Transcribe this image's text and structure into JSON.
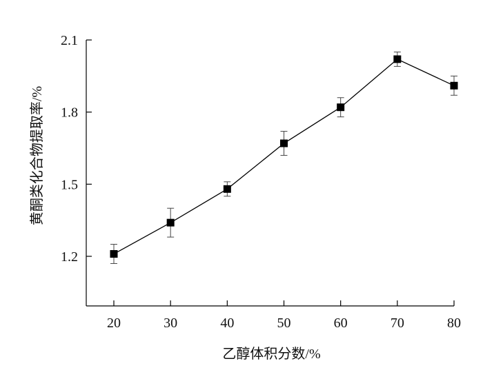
{
  "chart_data": {
    "type": "line",
    "title": "",
    "xlabel": "乙醇体积分数/%",
    "ylabel": "黄酮类化合物提取率/%",
    "x": [
      20,
      30,
      40,
      50,
      60,
      70,
      80
    ],
    "series": [
      {
        "values": [
          1.21,
          1.34,
          1.48,
          1.67,
          1.82,
          2.02,
          1.91
        ],
        "error": [
          0.04,
          0.06,
          0.03,
          0.05,
          0.04,
          0.03,
          0.04
        ]
      }
    ],
    "x_ticks": [
      "20",
      "30",
      "40",
      "50",
      "60",
      "70",
      "80"
    ],
    "y_ticks": [
      "1.2",
      "1.5",
      "1.8",
      "2.1"
    ],
    "xlim": [
      15,
      80
    ],
    "ylim": [
      0.99,
      2.1
    ],
    "grid": false,
    "legend": "none",
    "marker": "square",
    "colors": {
      "line": "#000000",
      "marker": "#000000",
      "axis": "#000000"
    }
  }
}
